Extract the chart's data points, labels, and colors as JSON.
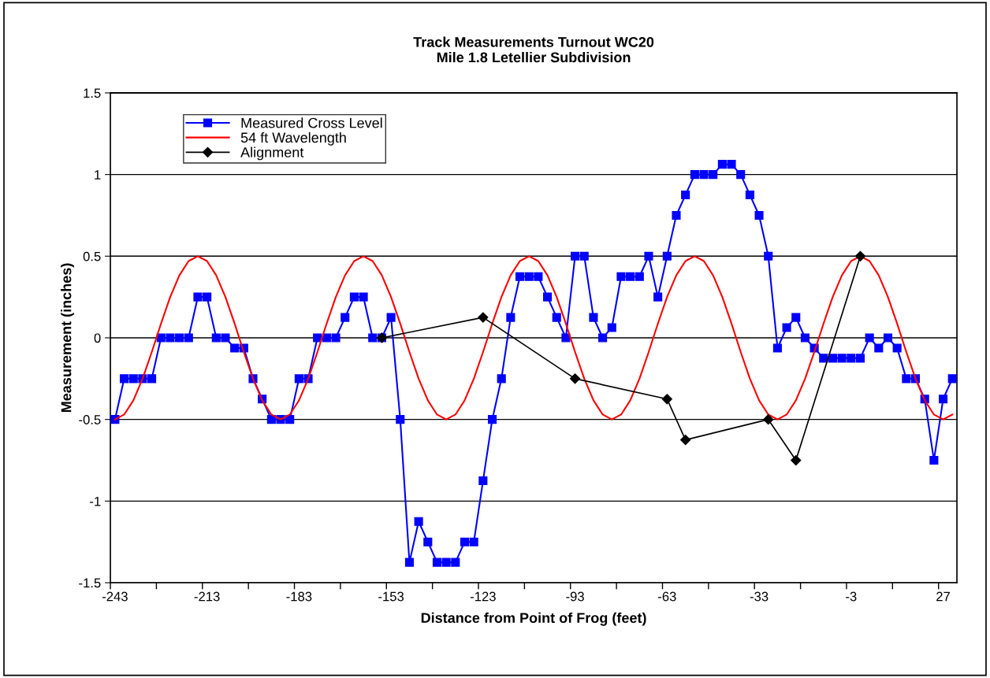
{
  "chart_data": {
    "type": "line",
    "title": "Track Measurements Turnout WC20\nMile 1.8 Letellier Subdivision",
    "xlabel": "Distance from Point of Frog (feet)",
    "ylabel": "Measurement (inches)",
    "categories": [
      "-243",
      null,
      null,
      null,
      null,
      null,
      null,
      null,
      null,
      null,
      "-213",
      null,
      null,
      null,
      null,
      null,
      null,
      null,
      null,
      null,
      "-183",
      null,
      null,
      null,
      null,
      null,
      null,
      null,
      null,
      null,
      "-153",
      null,
      null,
      null,
      null,
      null,
      null,
      null,
      null,
      null,
      "-123",
      null,
      null,
      null,
      null,
      null,
      null,
      null,
      null,
      null,
      "-93",
      null,
      null,
      null,
      null,
      null,
      null,
      null,
      null,
      null,
      "-63",
      null,
      null,
      null,
      null,
      null,
      null,
      null,
      null,
      null,
      "-33",
      null,
      null,
      null,
      null,
      null,
      null,
      null,
      null,
      null,
      "-3",
      null,
      null,
      null,
      null,
      null,
      null,
      null,
      null,
      null,
      "27",
      null
    ],
    "ylim": [
      -1.5,
      1.5
    ],
    "yticks": [
      -1.5,
      -1,
      -0.5,
      0,
      0.5,
      1,
      1.5
    ],
    "grid": "y",
    "legend": "top left",
    "series": [
      {
        "name": "Measured Cross Level",
        "color": "#0000ff",
        "marker": "square",
        "values": [
          -0.5,
          -0.25,
          -0.25,
          -0.25,
          -0.25,
          0,
          0,
          0,
          0,
          0.25,
          0.25,
          0,
          0,
          -0.0625,
          -0.0625,
          -0.25,
          -0.375,
          -0.5,
          -0.5,
          -0.5,
          -0.25,
          -0.25,
          0,
          0,
          0,
          0.125,
          0.25,
          0.25,
          0,
          0,
          0.125,
          -0.5,
          -1.375,
          -1.125,
          -1.25,
          -1.375,
          -1.375,
          -1.375,
          -1.25,
          -1.25,
          -0.875,
          -0.5,
          -0.25,
          0.125,
          0.375,
          0.375,
          0.375,
          0.25,
          0.125,
          0,
          0.5,
          0.5,
          0.125,
          0,
          0.0625,
          0.375,
          0.375,
          0.375,
          0.5,
          0.25,
          0.5,
          0.75,
          0.875,
          1,
          1,
          1,
          1.0625,
          1.0625,
          1,
          0.875,
          0.75,
          0.5,
          -0.0625,
          0.0625,
          0.125,
          0,
          -0.0625,
          -0.125,
          -0.125,
          -0.125,
          -0.125,
          -0.125,
          0,
          -0.0625,
          0,
          -0.0625,
          -0.25,
          -0.25,
          -0.375,
          -0.75,
          -0.375,
          -0.25
        ]
      },
      {
        "name": "54 ft Wavelength",
        "color": "#ff0000",
        "marker": "none",
        "values": [
          -0.5,
          -0.47,
          -0.383,
          -0.25,
          -0.087,
          0.087,
          0.25,
          0.383,
          0.47,
          0.5,
          0.47,
          0.383,
          0.25,
          0.087,
          -0.087,
          -0.25,
          -0.383,
          -0.47,
          -0.5,
          -0.47,
          -0.383,
          -0.25,
          -0.087,
          0.087,
          0.25,
          0.383,
          0.47,
          0.5,
          0.47,
          0.383,
          0.25,
          0.087,
          -0.087,
          -0.25,
          -0.383,
          -0.47,
          -0.5,
          -0.47,
          -0.383,
          -0.25,
          -0.087,
          0.087,
          0.25,
          0.383,
          0.47,
          0.5,
          0.47,
          0.383,
          0.25,
          0.087,
          -0.087,
          -0.25,
          -0.383,
          -0.47,
          -0.5,
          -0.47,
          -0.383,
          -0.25,
          -0.087,
          0.087,
          0.25,
          0.383,
          0.47,
          0.5,
          0.47,
          0.383,
          0.25,
          0.087,
          -0.087,
          -0.25,
          -0.383,
          -0.47,
          -0.5,
          -0.47,
          -0.383,
          -0.25,
          -0.087,
          0.087,
          0.25,
          0.383,
          0.47,
          0.5,
          0.47,
          0.383,
          0.25,
          0.087,
          -0.087,
          -0.25,
          -0.383,
          -0.47,
          -0.5,
          -0.47
        ]
      },
      {
        "name": "Alignment",
        "color": "#000000",
        "marker": "diamond",
        "values": [
          null,
          null,
          null,
          null,
          null,
          null,
          null,
          null,
          null,
          null,
          null,
          null,
          null,
          null,
          null,
          null,
          null,
          null,
          null,
          null,
          null,
          null,
          null,
          null,
          null,
          null,
          null,
          null,
          null,
          0,
          null,
          null,
          null,
          null,
          null,
          null,
          null,
          null,
          null,
          null,
          0.125,
          null,
          null,
          null,
          null,
          null,
          null,
          null,
          null,
          null,
          -0.25,
          null,
          null,
          null,
          null,
          null,
          null,
          null,
          null,
          null,
          -0.375,
          null,
          -0.625,
          null,
          null,
          null,
          null,
          null,
          null,
          null,
          null,
          -0.5,
          null,
          null,
          -0.75,
          null,
          null,
          null,
          null,
          null,
          null,
          0.5,
          null,
          null,
          null,
          null,
          null,
          null,
          null,
          null,
          null,
          null
        ]
      }
    ]
  }
}
